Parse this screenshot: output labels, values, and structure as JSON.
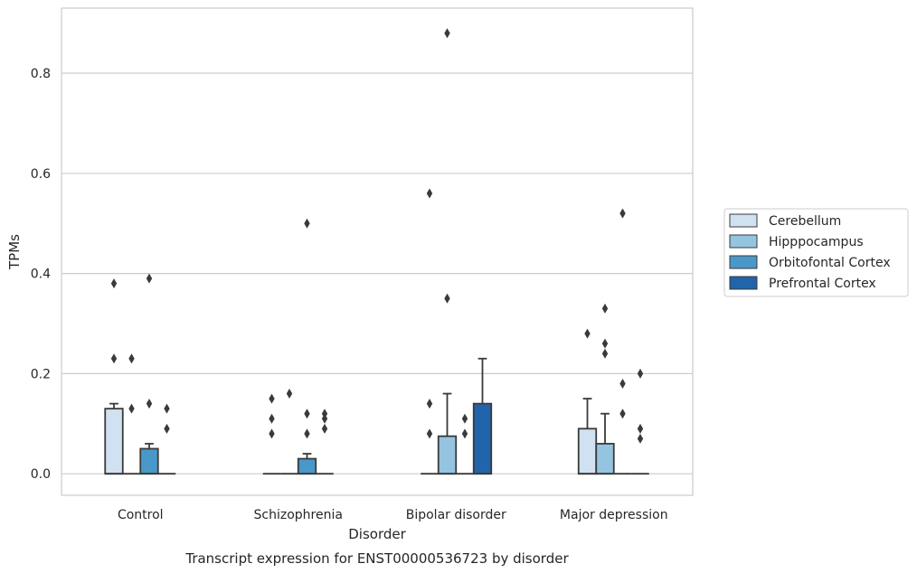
{
  "chart_data": {
    "type": "boxplot",
    "xlabel": "Disorder",
    "ylabel": "TPMs",
    "caption": "Transcript expression for ENST00000536723 by disorder",
    "ylim": [
      -0.043,
      0.93
    ],
    "yticks": [
      0.0,
      0.2,
      0.4,
      0.6,
      0.8
    ],
    "ytick_labels": [
      "0.0",
      "0.2",
      "0.4",
      "0.6",
      "0.8"
    ],
    "grid": "horizontal",
    "legend_position": "right",
    "categories": [
      "Control",
      "Schizophrenia",
      "Bipolar disorder",
      "Major depression"
    ],
    "series": [
      {
        "name": "Cerebellum",
        "color": "#d0e1f2",
        "boxes": [
          {
            "q1": 0,
            "median": 0,
            "q3": 0.13,
            "whisker_low": 0,
            "whisker_high": 0.14,
            "outliers": [
              0.38,
              0.23
            ]
          },
          {
            "q1": 0,
            "median": 0,
            "q3": 0,
            "whisker_low": 0,
            "whisker_high": 0,
            "outliers": [
              0.15,
              0.11,
              0.08
            ]
          },
          {
            "q1": 0,
            "median": 0,
            "q3": 0,
            "whisker_low": 0,
            "whisker_high": 0,
            "outliers": [
              0.56,
              0.14,
              0.08
            ]
          },
          {
            "q1": 0,
            "median": 0,
            "q3": 0.09,
            "whisker_low": 0,
            "whisker_high": 0.15,
            "outliers": [
              0.28
            ]
          }
        ]
      },
      {
        "name": "Hipppocampus",
        "color": "#94c4df",
        "boxes": [
          {
            "q1": 0,
            "median": 0,
            "q3": 0,
            "whisker_low": 0,
            "whisker_high": 0,
            "outliers": [
              0.23,
              0.13
            ]
          },
          {
            "q1": 0,
            "median": 0,
            "q3": 0,
            "whisker_low": 0,
            "whisker_high": 0,
            "outliers": [
              0.16
            ]
          },
          {
            "q1": 0,
            "median": 0,
            "q3": 0.075,
            "whisker_low": 0,
            "whisker_high": 0.16,
            "outliers": [
              0.88,
              0.35
            ]
          },
          {
            "q1": 0,
            "median": 0,
            "q3": 0.06,
            "whisker_low": 0,
            "whisker_high": 0.12,
            "outliers": [
              0.33,
              0.26,
              0.24
            ]
          }
        ]
      },
      {
        "name": "Orbitofontal Cortex",
        "color": "#4a98c9",
        "boxes": [
          {
            "q1": 0,
            "median": 0,
            "q3": 0.05,
            "whisker_low": 0,
            "whisker_high": 0.06,
            "outliers": [
              0.39,
              0.14
            ]
          },
          {
            "q1": 0,
            "median": 0,
            "q3": 0.03,
            "whisker_low": 0,
            "whisker_high": 0.04,
            "outliers": [
              0.5,
              0.12,
              0.08
            ]
          },
          {
            "q1": 0,
            "median": 0,
            "q3": 0,
            "whisker_low": 0,
            "whisker_high": 0,
            "outliers": [
              0.11,
              0.08
            ]
          },
          {
            "q1": 0,
            "median": 0,
            "q3": 0,
            "whisker_low": 0,
            "whisker_high": 0,
            "outliers": [
              0.52,
              0.18,
              0.12
            ]
          }
        ]
      },
      {
        "name": "Prefrontal Cortex",
        "color": "#2164ab",
        "boxes": [
          {
            "q1": 0,
            "median": 0,
            "q3": 0,
            "whisker_low": 0,
            "whisker_high": 0,
            "outliers": [
              0.13,
              0.09
            ]
          },
          {
            "q1": 0,
            "median": 0,
            "q3": 0,
            "whisker_low": 0,
            "whisker_high": 0,
            "outliers": [
              0.12,
              0.11,
              0.09
            ]
          },
          {
            "q1": 0,
            "median": 0,
            "q3": 0.14,
            "whisker_low": 0,
            "whisker_high": 0.23,
            "outliers": []
          },
          {
            "q1": 0,
            "median": 0,
            "q3": 0,
            "whisker_low": 0,
            "whisker_high": 0,
            "outliers": [
              0.2,
              0.09,
              0.07
            ]
          }
        ]
      }
    ]
  }
}
